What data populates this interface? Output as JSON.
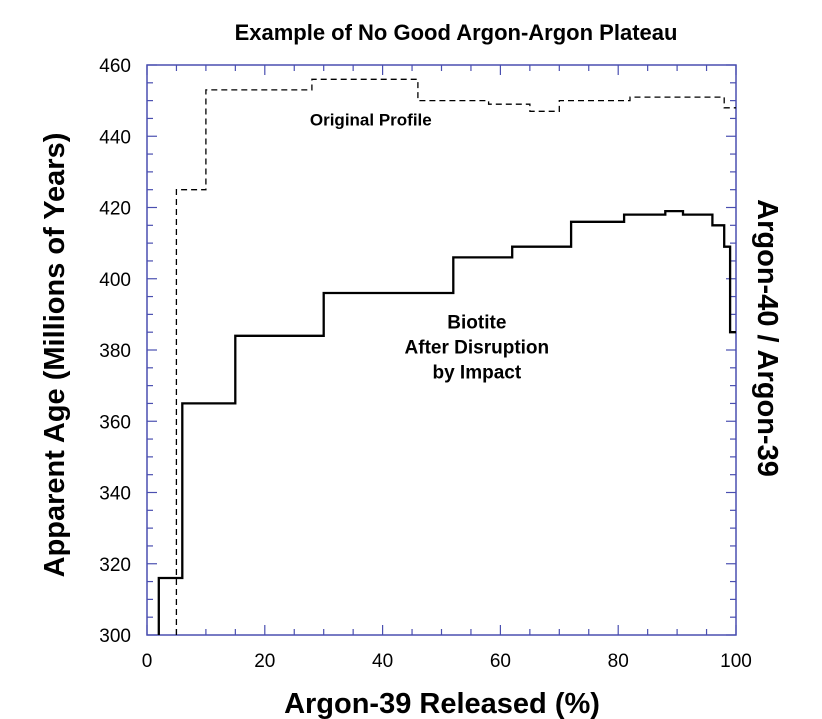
{
  "chart_data": {
    "type": "line",
    "title": "Example of No Good Argon-Argon Plateau",
    "xlabel": "Argon-39 Released (%)",
    "ylabel": "Apparent Age (Millions of Years)",
    "y2label": "Argon-40 / Argon-39",
    "xlim": [
      0,
      100
    ],
    "ylim": [
      300,
      460
    ],
    "xticks": [
      0,
      20,
      40,
      60,
      80,
      100
    ],
    "yticks": [
      300,
      320,
      340,
      360,
      380,
      400,
      420,
      440,
      460
    ],
    "grid": false,
    "series": [
      {
        "name": "Original Profile",
        "style": "dashed",
        "color": "#000000",
        "x": [
          5,
          5,
          10,
          10,
          28,
          28,
          46,
          46,
          58,
          58,
          65,
          65,
          70,
          70,
          82,
          82,
          98,
          98,
          100
        ],
        "y": [
          300,
          425,
          425,
          453,
          453,
          456,
          456,
          450,
          450,
          449,
          449,
          447,
          447,
          450,
          450,
          451,
          451,
          448,
          448
        ]
      },
      {
        "name": "Biotite After Disruption by Impact",
        "style": "solid",
        "color": "#000000",
        "x": [
          2,
          2,
          6,
          6,
          15,
          15,
          30,
          30,
          52,
          52,
          62,
          62,
          72,
          72,
          81,
          81,
          88,
          88,
          91,
          91,
          96,
          96,
          98,
          98,
          99,
          99,
          100
        ],
        "y": [
          300,
          316,
          316,
          365,
          365,
          384,
          384,
          396,
          396,
          406,
          406,
          409,
          409,
          416,
          416,
          418,
          418,
          419,
          419,
          418,
          418,
          415,
          415,
          409,
          409,
          385,
          385
        ]
      }
    ],
    "annotations": [
      {
        "text": "Original Profile",
        "x": 38,
        "y": 443
      },
      {
        "text": "Biotite",
        "x": 56,
        "y": 386
      },
      {
        "text": "After Disruption",
        "x": 56,
        "y": 379
      },
      {
        "text": "by Impact",
        "x": 56,
        "y": 372
      }
    ]
  }
}
